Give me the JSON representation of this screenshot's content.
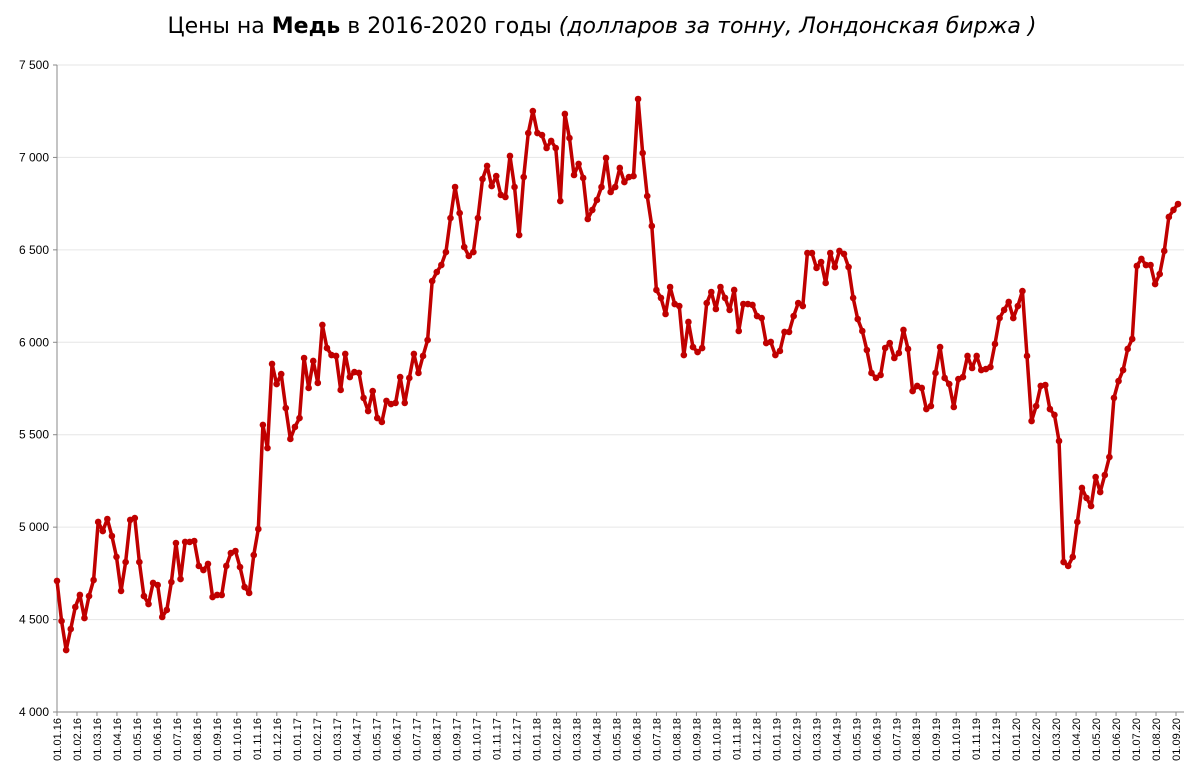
{
  "chart_data": {
    "type": "line",
    "title": {
      "prefix": "Цены на ",
      "bold": "Медь",
      "middle": " в 2016-2020 годы ",
      "italic": "(долларов за тонну, Лондонская биржа )"
    },
    "xlabel": "",
    "ylabel": "",
    "ylim": [
      4000,
      7500
    ],
    "yticks": [
      4000,
      4500,
      5000,
      5500,
      6000,
      6500,
      7000,
      7500
    ],
    "ytick_labels": [
      "4 000",
      "4 500",
      "5 000",
      "5 500",
      "6 000",
      "6 500",
      "7 000",
      "7 500"
    ],
    "grid": true,
    "legend": "none",
    "xtick_labels": [
      "01.01.16",
      "01.02.16",
      "01.03.16",
      "01.04.16",
      "01.05.16",
      "01.06.16",
      "01.07.16",
      "01.08.16",
      "01.09.16",
      "01.10.16",
      "01.11.16",
      "01.12.16",
      "01.01.17",
      "01.02.17",
      "01.03.17",
      "01.04.17",
      "01.05.17",
      "01.06.17",
      "01.07.17",
      "01.08.17",
      "01.09.17",
      "01.10.17",
      "01.11.17",
      "01.12.17",
      "01.01.18",
      "01.02.18",
      "01.03.18",
      "01.04.18",
      "01.05.18",
      "01.06.18",
      "01.07.18",
      "01.08.18",
      "01.09.18",
      "01.10.18",
      "01.11.18",
      "01.12.18",
      "01.01.19",
      "01.02.19",
      "01.03.19",
      "01.04.19",
      "01.05.19",
      "01.06.19",
      "01.07.19",
      "01.08.19",
      "01.09.19",
      "01.10.19",
      "01.11.19",
      "01.12.19",
      "01.01.20",
      "01.02.20",
      "01.03.20",
      "01.04.20",
      "01.05.20",
      "01.06.20",
      "01.07.20",
      "01.08.20",
      "01.09.20"
    ],
    "series": [
      {
        "name": "Медь",
        "color": "#C00000",
        "x_start": "01.01.16",
        "x_end": "01.09.20",
        "frequency": "weekly",
        "values": [
          4709,
          4492,
          4335,
          4449,
          4568,
          4633,
          4508,
          4627,
          4714,
          5028,
          4979,
          5044,
          4952,
          4839,
          4655,
          4811,
          5039,
          5049,
          4811,
          4627,
          4584,
          4698,
          4687,
          4514,
          4552,
          4703,
          4914,
          4719,
          4920,
          4920,
          4925,
          4790,
          4768,
          4801,
          4622,
          4633,
          4633,
          4790,
          4860,
          4871,
          4784,
          4676,
          4644,
          4849,
          4990,
          5553,
          5428,
          5883,
          5774,
          5828,
          5644,
          5477,
          5542,
          5590,
          5915,
          5753,
          5899,
          5780,
          6094,
          5969,
          5931,
          5926,
          5742,
          5937,
          5812,
          5839,
          5834,
          5699,
          5628,
          5736,
          5590,
          5569,
          5683,
          5666,
          5672,
          5812,
          5672,
          5807,
          5937,
          5834,
          5926,
          6012,
          6331,
          6380,
          6418,
          6488,
          6672,
          6840,
          6699,
          6515,
          6467,
          6488,
          6672,
          6883,
          6954,
          6845,
          6899,
          6797,
          6786,
          7008,
          6840,
          6580,
          6894,
          7132,
          7251,
          7132,
          7121,
          7051,
          7089,
          7051,
          6764,
          7235,
          7105,
          6905,
          6965,
          6889,
          6667,
          6716,
          6770,
          6840,
          6997,
          6813,
          6840,
          6943,
          6867,
          6894,
          6899,
          7316,
          7024,
          6791,
          6629,
          6283,
          6240,
          6153,
          6299,
          6207,
          6196,
          5931,
          6110,
          5974,
          5947,
          5969,
          6212,
          6272,
          6180,
          6299,
          6240,
          6175,
          6283,
          6061,
          6207,
          6207,
          6202,
          6142,
          6131,
          5996,
          6002,
          5931,
          5953,
          6056,
          6056,
          6142,
          6212,
          6196,
          6483,
          6483,
          6402,
          6434,
          6321,
          6483,
          6407,
          6494,
          6478,
          6407,
          6240,
          6126,
          6061,
          5958,
          5834,
          5807,
          5823,
          5969,
          5996,
          5915,
          5942,
          6067,
          5964,
          5736,
          5764,
          5753,
          5639,
          5655,
          5834,
          5974,
          5807,
          5774,
          5650,
          5801,
          5812,
          5926,
          5861,
          5926,
          5850,
          5855,
          5866,
          5991,
          6131,
          6175,
          6218,
          6131,
          6196,
          6277,
          5926,
          5574,
          5655,
          5764,
          5769,
          5639,
          5607,
          5466,
          4811,
          4790,
          4839,
          5028,
          5212,
          5158,
          5114,
          5271,
          5190,
          5282,
          5379,
          5699,
          5790,
          5850,
          5964,
          6018,
          6413,
          6451,
          6418,
          6418,
          6315,
          6369,
          6494,
          6678,
          6716,
          6748
        ]
      }
    ]
  }
}
